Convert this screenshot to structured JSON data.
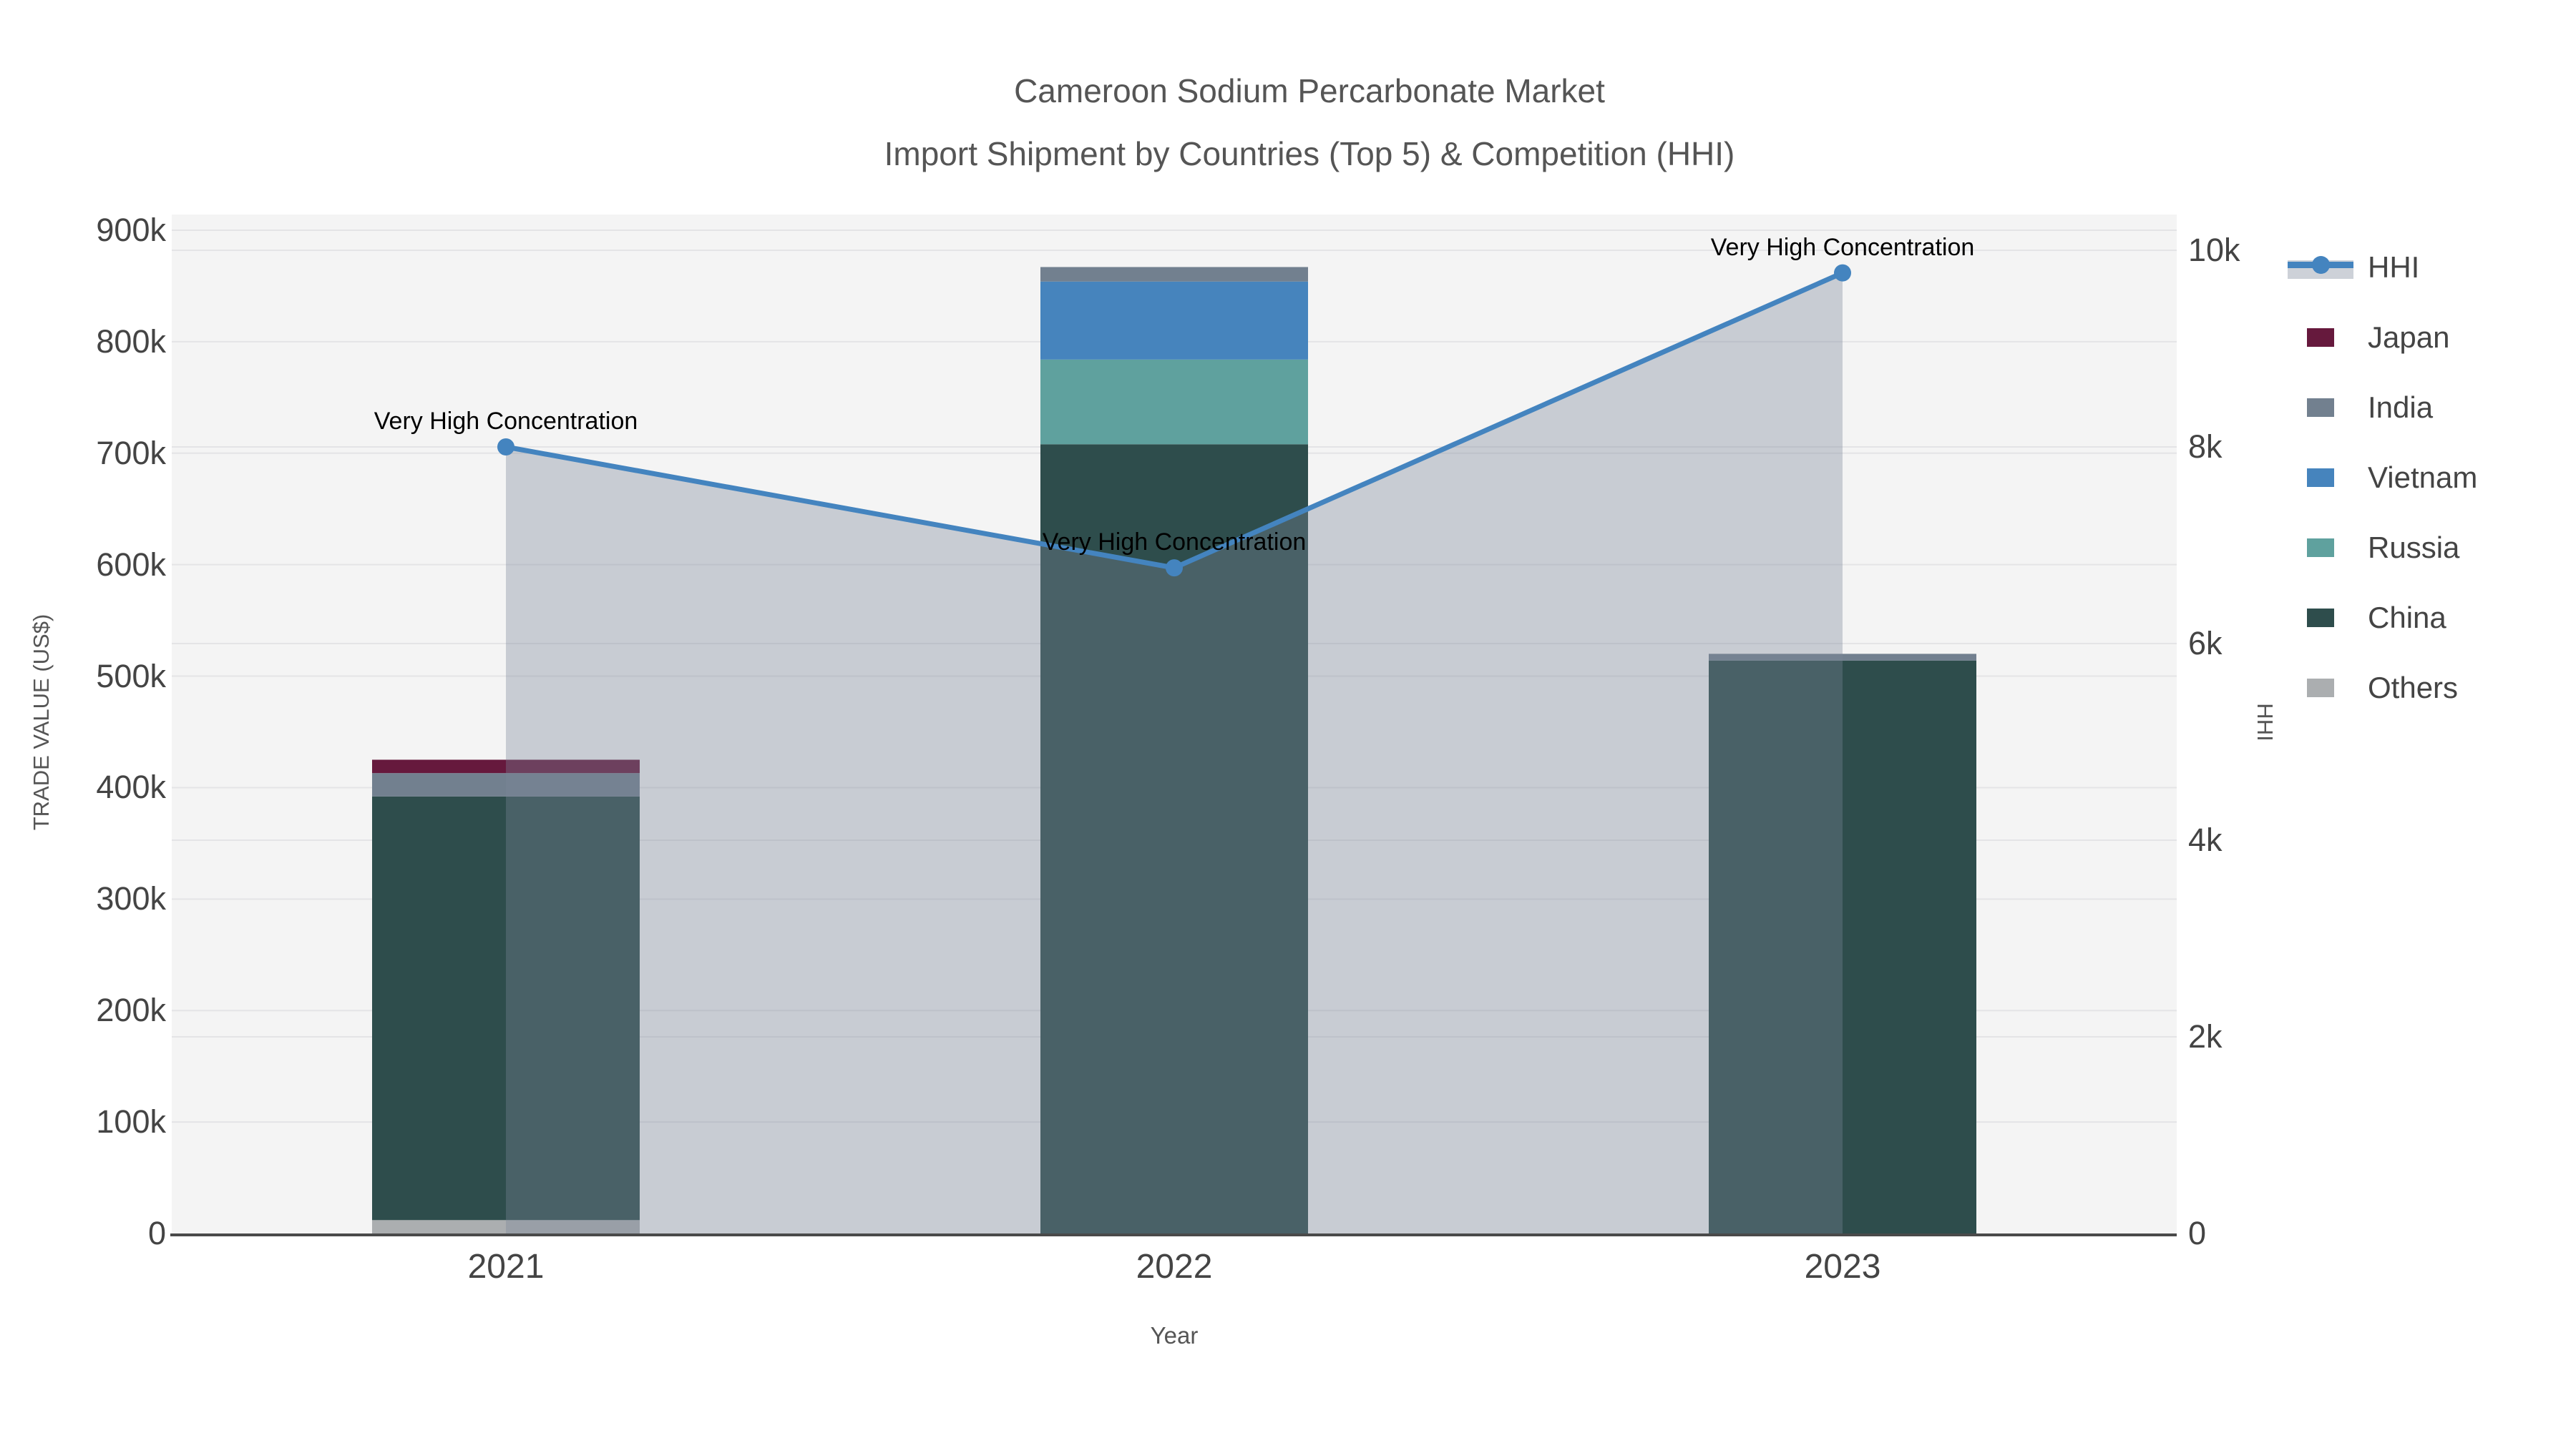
{
  "title": {
    "line1": "Cameroon Sodium Percarbonate Market",
    "line2": "Import Shipment by Countries (Top 5) & Competition (HHI)"
  },
  "chart_data": {
    "type": "combo",
    "subtype": [
      "stacked-bar",
      "line-area"
    ],
    "categories": [
      "2021",
      "2022",
      "2023"
    ],
    "bar_series_bottom_to_top": [
      {
        "name": "Others",
        "color": "#abaeb0",
        "values": [
          12000,
          0,
          0
        ]
      },
      {
        "name": "China",
        "color": "#2e4d4c",
        "values": [
          380000,
          708000,
          514000
        ]
      },
      {
        "name": "Russia",
        "color": "#5fa19e",
        "values": [
          0,
          76000,
          0
        ]
      },
      {
        "name": "Vietnam",
        "color": "#4684bd",
        "values": [
          0,
          70000,
          0
        ]
      },
      {
        "name": "India",
        "color": "#72808f",
        "values": [
          21000,
          13000,
          6000
        ]
      },
      {
        "name": "Japan",
        "color": "#66193d",
        "values": [
          12000,
          0,
          0
        ]
      }
    ],
    "line_series": {
      "name": "HHI",
      "color": "#4484bf",
      "area_fill": "rgba(122,132,152,0.36)",
      "values": [
        8000,
        6770,
        9770
      ]
    },
    "annotations": [
      {
        "text": "Very High Concentration",
        "category": "2021"
      },
      {
        "text": "Very High Concentration",
        "category": "2022"
      },
      {
        "text": "Very High Concentration",
        "category": "2023"
      }
    ],
    "axes": {
      "x": {
        "title": "Year"
      },
      "y_left": {
        "title": "TRADE VALUE (US$)",
        "range": [
          0,
          900000
        ],
        "ticks": [
          {
            "label": "0",
            "value": 0
          },
          {
            "label": "100k",
            "value": 100000
          },
          {
            "label": "200k",
            "value": 200000
          },
          {
            "label": "300k",
            "value": 300000
          },
          {
            "label": "400k",
            "value": 400000
          },
          {
            "label": "500k",
            "value": 500000
          },
          {
            "label": "600k",
            "value": 600000
          },
          {
            "label": "700k",
            "value": 700000
          },
          {
            "label": "800k",
            "value": 800000
          },
          {
            "label": "900k",
            "value": 900000
          }
        ]
      },
      "y_right": {
        "title": "HHI",
        "range": [
          0,
          10000
        ],
        "ticks": [
          {
            "label": "0",
            "value": 0
          },
          {
            "label": "2k",
            "value": 2000
          },
          {
            "label": "4k",
            "value": 4000
          },
          {
            "label": "6k",
            "value": 6000
          },
          {
            "label": "8k",
            "value": 8000
          },
          {
            "label": "10k",
            "value": 10000
          }
        ]
      }
    },
    "legend": [
      "HHI",
      "Japan",
      "India",
      "Vietnam",
      "Russia",
      "China",
      "Others"
    ],
    "styles": {
      "plot_bg": "#f4f4f4",
      "grid": "#e4e4e6",
      "axis_line": "#4a4a4a",
      "tick_color": "#444444",
      "title_color": "#555555",
      "annotation_color": "#000000"
    }
  }
}
